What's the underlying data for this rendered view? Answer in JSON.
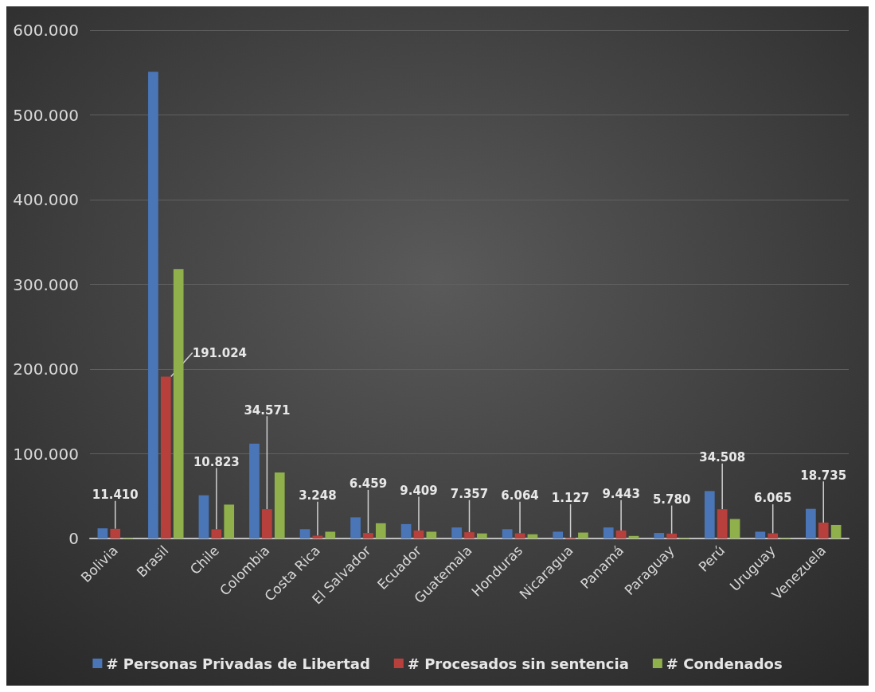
{
  "chart_data": {
    "type": "bar",
    "categories": [
      "Bolivia",
      "Brasil",
      "Chile",
      "Colombia",
      "Costa Rica",
      "El Salvador",
      "Ecuador",
      "Guatemala",
      "Honduras",
      "Nicaragua",
      "Panamá",
      "Paraguay",
      "Perú",
      "Uruguay",
      "Venezuela"
    ],
    "series": [
      {
        "name": "# Personas Privadas de Libertad",
        "color": "#4a76b8",
        "values": [
          12000,
          551000,
          51000,
          112000,
          11000,
          25000,
          17000,
          13000,
          11000,
          8000,
          13000,
          6500,
          56000,
          8000,
          35000
        ]
      },
      {
        "name": "# Procesados sin sentencia",
        "color": "#b8403c",
        "values": [
          11410,
          191024,
          10823,
          34571,
          3248,
          6459,
          9409,
          7357,
          6064,
          1127,
          9443,
          5780,
          34508,
          6065,
          18735
        ],
        "value_labels": [
          "11.410",
          "191.024",
          "10.823",
          "34.571",
          "3.248",
          "6.459",
          "9.409",
          "7.357",
          "6.064",
          "1.127",
          "9.443",
          "5.780",
          "34.508",
          "6.065",
          "18.735"
        ]
      },
      {
        "name": "# Condenados",
        "color": "#8fb04a",
        "values": [
          1000,
          318000,
          40000,
          78000,
          8000,
          18000,
          8000,
          6000,
          5000,
          7000,
          3000,
          1000,
          23000,
          1000,
          16000
        ]
      }
    ],
    "ylim": [
      0,
      600000
    ],
    "yticks": [
      0,
      {
        "value": 100000,
        "label": "100.000"
      },
      {
        "value": 200000,
        "label": "200.000"
      },
      {
        "value": 300000,
        "label": "300.000"
      },
      {
        "value": 400000,
        "label": "400.000"
      },
      {
        "value": 500000,
        "label": "500.000"
      },
      {
        "value": 600000,
        "label": "600.000"
      }
    ],
    "grid": "y",
    "legend": "bottom"
  }
}
